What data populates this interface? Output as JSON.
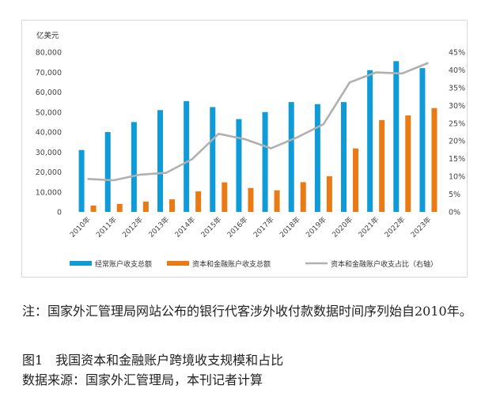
{
  "chart_data": {
    "type": "bar",
    "y_unit": "亿美元",
    "categories": [
      "2010年",
      "2011年",
      "2012年",
      "2013年",
      "2014年",
      "2015年",
      "2016年",
      "2017年",
      "2018年",
      "2019年",
      "2020年",
      "2021年",
      "2022年",
      "2023年"
    ],
    "series": [
      {
        "name": "经常账户收支总额",
        "kind": "bar",
        "axis": "left",
        "color": "#0e9bd8",
        "values": [
          31000,
          40000,
          45000,
          51000,
          55500,
          52500,
          46500,
          50000,
          55000,
          54000,
          55000,
          71000,
          75500,
          72000
        ]
      },
      {
        "name": "资本和金融账户收支总额",
        "kind": "bar",
        "axis": "left",
        "color": "#ea7a14",
        "values": [
          3200,
          4000,
          5200,
          6300,
          10300,
          14800,
          12000,
          10800,
          14900,
          17900,
          31800,
          46000,
          48300,
          52000
        ]
      },
      {
        "name": "资本和金融账户收支占比（右轴）",
        "kind": "line",
        "axis": "right",
        "color": "#b0b0b0",
        "values": [
          9.3,
          8.9,
          10.5,
          11.0,
          14.9,
          22.0,
          20.5,
          17.9,
          21.0,
          24.7,
          36.5,
          39.3,
          39.0,
          42.0
        ]
      }
    ],
    "y_left": {
      "min": 0,
      "max": 80000,
      "ticks": [
        "0",
        "10,000",
        "20,000",
        "30,000",
        "40,000",
        "50,000",
        "60,000",
        "70,000",
        "80,000"
      ]
    },
    "y_right": {
      "min": 0,
      "max": 45,
      "ticks": [
        "0%",
        "5%",
        "10%",
        "15%",
        "20%",
        "25%",
        "30%",
        "35%",
        "40%",
        "45%"
      ]
    },
    "grid": false,
    "legend_position": "bottom"
  },
  "notes": {
    "note": "注：国家外汇管理局网站公布的银行代客涉外收付款数据时间序列始自2010年。",
    "figure_title": "图1　我国资本和金融账户跨境收支规模和占比",
    "source": "数据来源：国家外汇管理局，本刊记者计算"
  }
}
